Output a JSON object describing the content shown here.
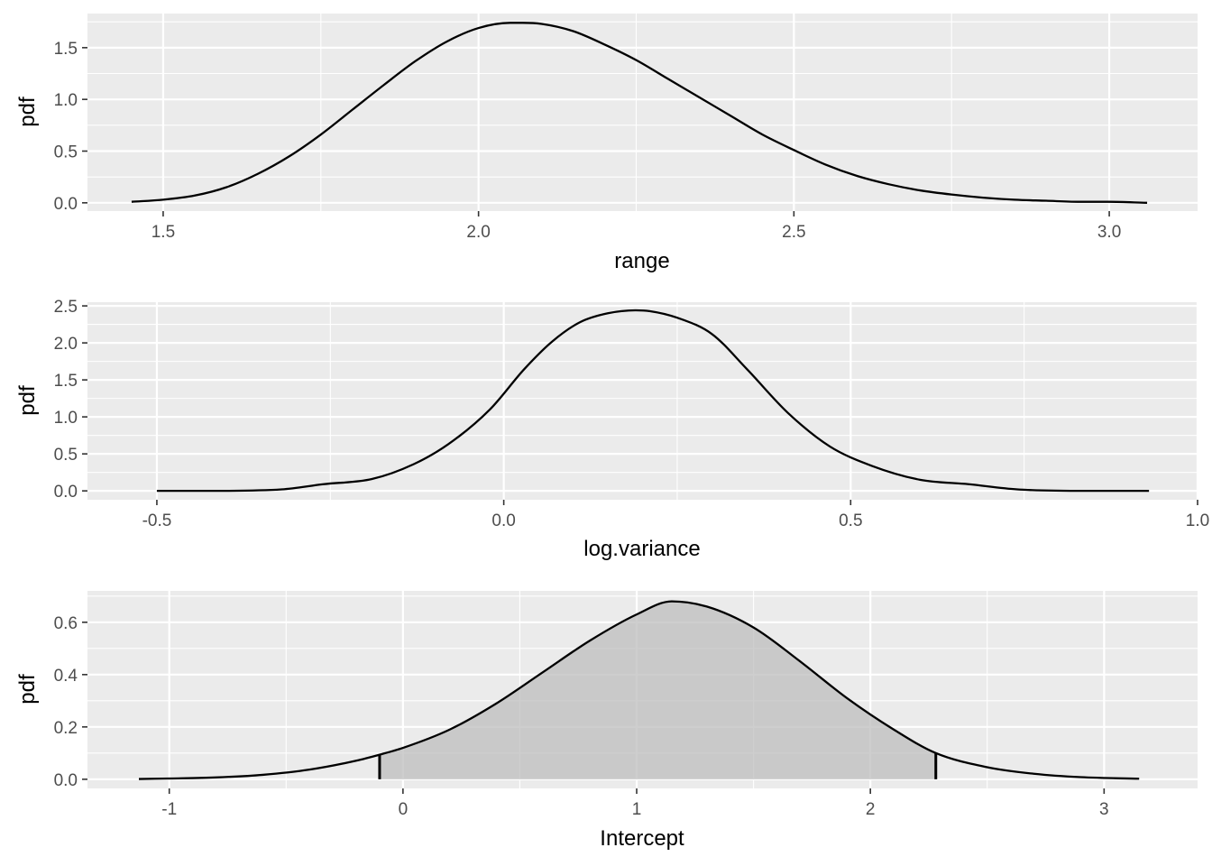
{
  "chart_data": [
    {
      "type": "line",
      "xlabel": "range",
      "ylabel": "pdf",
      "xlim": [
        1.38,
        3.14
      ],
      "ylim": [
        -0.08,
        1.83
      ],
      "x_ticks": [
        1.5,
        2.0,
        2.5,
        3.0
      ],
      "x_tick_labels": [
        "1.5",
        "2.0",
        "2.5",
        "3.0"
      ],
      "y_ticks": [
        0.0,
        0.5,
        1.0,
        1.5
      ],
      "y_tick_labels": [
        "0.0",
        "0.5",
        "1.0",
        "1.5"
      ],
      "grid": true,
      "shaded": false,
      "series": [
        {
          "x": [
            1.45,
            1.5,
            1.55,
            1.6,
            1.65,
            1.7,
            1.75,
            1.8,
            1.85,
            1.9,
            1.95,
            2.0,
            2.05,
            2.07,
            2.1,
            2.15,
            2.2,
            2.25,
            2.3,
            2.35,
            2.4,
            2.45,
            2.5,
            2.55,
            2.6,
            2.65,
            2.7,
            2.75,
            2.8,
            2.85,
            2.9,
            2.95,
            3.0,
            3.06
          ],
          "y": [
            0.01,
            0.03,
            0.07,
            0.15,
            0.28,
            0.45,
            0.66,
            0.9,
            1.14,
            1.37,
            1.56,
            1.69,
            1.74,
            1.74,
            1.73,
            1.66,
            1.53,
            1.38,
            1.2,
            1.02,
            0.84,
            0.66,
            0.51,
            0.37,
            0.26,
            0.18,
            0.12,
            0.08,
            0.05,
            0.03,
            0.02,
            0.01,
            0.01,
            0.0
          ]
        }
      ]
    },
    {
      "type": "line",
      "xlabel": "log.variance",
      "ylabel": "pdf",
      "xlim": [
        -0.6,
        1.0
      ],
      "ylim": [
        -0.12,
        2.55
      ],
      "x_ticks": [
        -0.5,
        0.0,
        0.5,
        1.0
      ],
      "x_tick_labels": [
        "-0.5",
        "0.0",
        "0.5",
        "1.0"
      ],
      "y_ticks": [
        0.0,
        0.5,
        1.0,
        1.5,
        2.0,
        2.5
      ],
      "y_tick_labels": [
        "0.0",
        "0.5",
        "1.0",
        "1.5",
        "2.0",
        "2.5"
      ],
      "grid": true,
      "shaded": false,
      "series": [
        {
          "x": [
            -0.5,
            -0.42,
            -0.32,
            -0.26,
            -0.19,
            -0.13,
            -0.08,
            -0.02,
            0.03,
            0.07,
            0.11,
            0.15,
            0.19,
            0.21,
            0.25,
            0.3,
            0.35,
            0.41,
            0.47,
            0.53,
            0.6,
            0.67,
            0.74,
            0.84,
            0.93
          ],
          "y": [
            0.0,
            0.0,
            0.02,
            0.09,
            0.16,
            0.36,
            0.63,
            1.1,
            1.65,
            2.02,
            2.28,
            2.4,
            2.44,
            2.43,
            2.34,
            2.12,
            1.65,
            1.05,
            0.6,
            0.34,
            0.15,
            0.09,
            0.02,
            0.0,
            0.0
          ]
        }
      ]
    },
    {
      "type": "area",
      "xlabel": "Intercept",
      "ylabel": "pdf",
      "xlim": [
        -1.35,
        3.4
      ],
      "ylim": [
        -0.035,
        0.72
      ],
      "x_ticks": [
        -1,
        0,
        1,
        2,
        3
      ],
      "x_tick_labels": [
        "-1",
        "0",
        "1",
        "2",
        "3"
      ],
      "y_ticks": [
        0.0,
        0.2,
        0.4,
        0.6
      ],
      "y_tick_labels": [
        "0.0",
        "0.2",
        "0.4",
        "0.6"
      ],
      "grid": true,
      "shaded": true,
      "shade_interval": [
        -0.1,
        2.28
      ],
      "series": [
        {
          "x": [
            -1.13,
            -1.0,
            -0.8,
            -0.6,
            -0.4,
            -0.2,
            -0.1,
            0.0,
            0.2,
            0.4,
            0.6,
            0.8,
            1.0,
            1.15,
            1.3,
            1.5,
            1.7,
            1.9,
            2.1,
            2.28,
            2.5,
            2.7,
            2.9,
            3.15
          ],
          "y": [
            0.001,
            0.003,
            0.007,
            0.017,
            0.037,
            0.071,
            0.094,
            0.12,
            0.19,
            0.29,
            0.41,
            0.53,
            0.63,
            0.68,
            0.66,
            0.58,
            0.45,
            0.31,
            0.19,
            0.1,
            0.046,
            0.021,
            0.008,
            0.002
          ]
        }
      ]
    }
  ]
}
